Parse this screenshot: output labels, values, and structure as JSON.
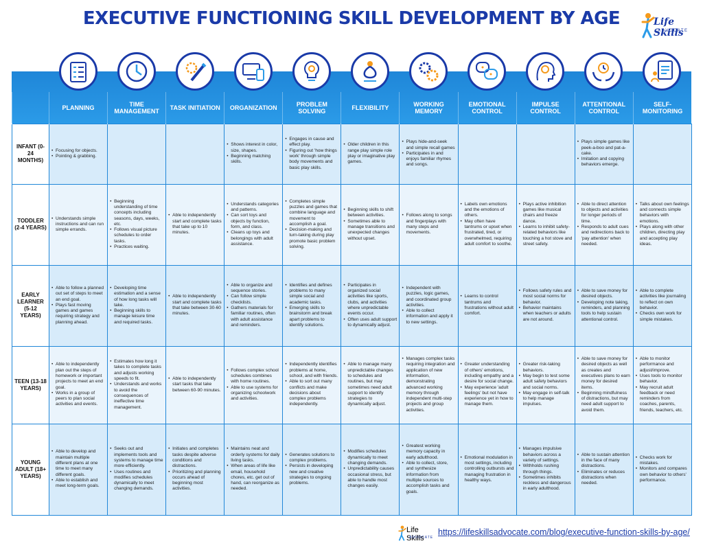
{
  "title": "EXECUTIVE FUNCTIONING SKILL DEVELOPMENT BY AGE",
  "logo": {
    "text": "Life Skills",
    "sub": "ADVOCATE"
  },
  "colors": {
    "title": "#1a3aa8",
    "band": "#1f86d8",
    "row_odd": "#d7ebfa",
    "row_even": "#eaf4fc"
  },
  "columns": [
    {
      "label": "PLANNING",
      "icon": "planning-checklist-icon"
    },
    {
      "label": "TIME MANAGEMENT",
      "icon": "clock-icon"
    },
    {
      "label": "TASK INITIATION",
      "icon": "gears-pencil-icon"
    },
    {
      "label": "ORGANIZATION",
      "icon": "devices-organization-icon"
    },
    {
      "label": "PROBLEM SOLVING",
      "icon": "lightbulb-gear-icon"
    },
    {
      "label": "FLEXIBILITY",
      "icon": "flexible-person-icon"
    },
    {
      "label": "WORKING MEMORY",
      "icon": "gears-brain-icon"
    },
    {
      "label": "EMOTIONAL CONTROL",
      "icon": "emotion-speech-icon"
    },
    {
      "label": "IMPULSE CONTROL",
      "icon": "brain-head-icon"
    },
    {
      "label": "ATTENTIONAL CONTROL",
      "icon": "hands-clock-icon"
    },
    {
      "label": "SELF-MONITORING",
      "icon": "report-person-icon"
    }
  ],
  "rows": [
    {
      "age": "INFANT (0-24 MONTHS)",
      "cells": [
        [
          "Focusing for objects.",
          "Pointing & grabbing."
        ],
        [],
        [],
        [
          "Shows interest in color, size, shapes.",
          "Beginning matching skills."
        ],
        [
          "Engages in cause and effect play.",
          "Figuring out 'how things work' through simple body movements and basic play skills."
        ],
        [
          "Older children in this range play simple role play or imaginative play games."
        ],
        [
          "Plays hide-and-seek and simple recall games",
          "Participates in and enjoys familiar rhymes and songs."
        ],
        [],
        [],
        [
          "Plays simple games like peek-a-boo and pat-a-cake.",
          "Imitation and copying behaviors emerge."
        ],
        []
      ]
    },
    {
      "age": "TODDLER (2-4 YEARS)",
      "cells": [
        [
          "Understands simple instructions and can run simple errands."
        ],
        [
          "Beginning understanding of time concepts including seasons, days, weeks, etc.",
          "Follows visual picture schedules to order tasks.",
          "Practices waiting."
        ],
        [
          "Able to independently start and complete tasks that take up to 10 minutes."
        ],
        [
          "Understands categories and patterns.",
          "Can sort toys and objects by function, form, and class.",
          "Cleans up toys and belongings with adult assistance."
        ],
        [
          "Completes simple puzzles and games that combine language and movement to accomplish a goal.",
          "Decision-making and turn-taking during play promote basic problem solving."
        ],
        [
          "Beginning skills to shift between activities.",
          "Sometimes able to manage transitions and unexpected changes without upset."
        ],
        [
          "Follows along to songs and fingerplays with many steps and movements."
        ],
        [
          "Labels own emotions and the emotions of others.",
          "May often have tantrums or upset when frustrated, tired, or overwhelmed, requiring adult comfort to soothe."
        ],
        [
          "Plays active inhibition games like musical chairs and freeze dance.",
          "Learns to inhibit safety-related behaviors like touching a hot stove and street safety."
        ],
        [
          "Able to direct attention to objects and activities for longer periods of time.",
          "Responds to adult cues and redirections back to 'pay attention' when needed."
        ],
        [
          "Talks about own feelings and connects simple behaviors with emotions.",
          "Plays along with other children, directing play and accepting play ideas."
        ]
      ]
    },
    {
      "age": "EARLY LEARNER (5-12 YEARS)",
      "cells": [
        [
          "Able to follow a planned out set of steps to meet an end goal.",
          "Plays fast moving games and games requiring strategy and planning ahead."
        ],
        [
          "Developing time estimation and a sense of how long tasks will take.",
          "Beginning skills to manage leisure time and required tasks."
        ],
        [
          "Able to independently start and complete tasks that take between 30-60 minutes."
        ],
        [
          "Able to organize and sequence stories.",
          "Can follow simple checklists.",
          "Gathers materials for familiar routines, often with adult assistance and reminders."
        ],
        [
          "Identifies and defines problems to many simple social and academic tasks.",
          "Emerging skills to brainstorm and break apart problems to identify solutions."
        ],
        [
          "Participates in organized social activities like sports, clubs, and activities where unpredictable events occur.",
          "Often uses adult support to dynamically adjust."
        ],
        [
          "Independent with puzzles, logic games, and coordinated group activities.",
          "Able to collect information and apply it to new settings."
        ],
        [
          "Learns to control tantrums and frustrations without adult comfort."
        ],
        [
          "Follows safety rules and most social norms for behavior.",
          "Behavior maintains when teachers or adults are not around."
        ],
        [
          "Able to save money for desired objects.",
          "Developing note taking, reminders, and planning tools to help sustain attentional control."
        ],
        [
          "Able to complete activities like journaling to reflect on own behavior.",
          "Checks own work for simple mistakes."
        ]
      ]
    },
    {
      "age": "TEEN (13-18 YEARS)",
      "cells": [
        [
          "Able to independently plan out the steps of homework or important projects to meet an end goal.",
          "Works in a group of peers to plan social activities and events."
        ],
        [
          "Estimates how long it takes to complete tasks and adjusts working speeds to fit.",
          "Understands and works to avoid the consequences of ineffective time management."
        ],
        [
          "Able to independently start tasks that take between 60-90 minutes."
        ],
        [
          "Follows complex school schedules combines with home routines.",
          "Able to use systems for organizing schoolwork and activities."
        ],
        [
          "Independently identifies problems at home, school, and with friends.",
          "Able to sort out many conflicts and make decisions about complex problems independently."
        ],
        [
          "Able to manage many unpredictable changes to schedules and routines, but may sometimes need adult support to identify strategies to dynamically adjust."
        ],
        [
          "Manages complex tasks requiring integration and application of new information, demonstrating advanced working memory through independent multi-step projects and group activities."
        ],
        [
          "Greater understanding of others' emotions, including empathy and a desire for social change.",
          "May experience 'adult feelings' but not have experience yet in how to manage them."
        ],
        [
          "Greater risk-taking behaviors.",
          "May begin to test some adult safety behaviors and social norms.",
          "May engage in self-talk to help manage impulses."
        ],
        [
          "Able to save money for desired objects as well as creates and executives plans to earn money for desired items.",
          "Beginning mindfulness of distractions, but may need adult support to avoid them."
        ],
        [
          "Able to monitor performance and adjust/improve.",
          "Uses tools to monitor behavior.",
          "May recruit adult feedback or need reminders from coaches, parents, friends, teachers, etc."
        ]
      ]
    },
    {
      "age": "YOUNG ADULT (18+ YEARS)",
      "cells": [
        [
          "Able to develop and maintain multiple different plans at one time to meet many different goals.",
          "Able to establish and meet long-term goals."
        ],
        [
          "Seeks out and implements tools and systems to manage time more efficiently.",
          "Uses routines and modifies schedules dynamically to meet changing demands."
        ],
        [
          "Initiates and completes tasks despite adverse conditions and distractions.",
          "Prioritizing and planning occurs ahead of beginning most activities."
        ],
        [
          "Maintains neat and orderly systems for daily living tasks.",
          "When areas of life like email, household chores, etc. get out of hand, can reorganize as needed."
        ],
        [
          "Generates solutions to complex problems.",
          "Persists in developing new and creative strategies to ongoing problems."
        ],
        [
          "Modifies schedules dynamically to meet changing demands.",
          "Unpredictability causes occasional stress, but able to handle most changes easily."
        ],
        [
          "Greatest working memory capacity in early adulthood.",
          "Able to collect, store, and synthesize information from multiple sources to accomplish tasks and goals."
        ],
        [
          "Emotional modulation in most settings, including controlling outbursts and managing frustration in healthy ways."
        ],
        [
          "Manages impulsive behaviors across a variety of settings.",
          "Withholds rushing through things.",
          "Sometimes inhibits reckless and dangerous in early adulthood."
        ],
        [
          "Able to sustain attention in the face of many distractions.",
          "Eliminates or reduces distractions when needed."
        ],
        [
          "Checks work for mistakes.",
          "Monitors and compares own behavior to others' performance."
        ]
      ]
    }
  ],
  "footer_url": "https://lifeskillsadvocate.com/blog/executive-function-skills-by-age/"
}
